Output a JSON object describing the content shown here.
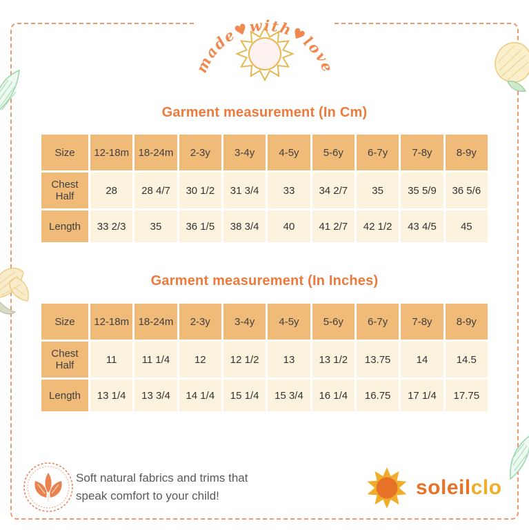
{
  "top_badge": {
    "text": "made♥with♥love"
  },
  "tables": [
    {
      "title": "Garment measurement (In Cm)",
      "header": [
        "Size",
        "12-18m",
        "18-24m",
        "2-3y",
        "3-4y",
        "4-5y",
        "5-6y",
        "6-7y",
        "7-8y",
        "8-9y"
      ],
      "rows": [
        {
          "label": "Chest Half",
          "values": [
            "28",
            "28 4/7",
            "30 1/2",
            "31 3/4",
            "33",
            "34 2/7",
            "35",
            "35 5/9",
            "36 5/6"
          ]
        },
        {
          "label": "Length",
          "values": [
            "33 2/3",
            "35",
            "36 1/5",
            "38 3/4",
            "40",
            "41 2/7",
            "42 1/2",
            "43 4/5",
            "45"
          ]
        }
      ]
    },
    {
      "title": "Garment measurement (In Inches)",
      "header": [
        "Size",
        "12-18m",
        "18-24m",
        "2-3y",
        "3-4y",
        "4-5y",
        "5-6y",
        "6-7y",
        "7-8y",
        "8-9y"
      ],
      "rows": [
        {
          "label": "Chest Half",
          "values": [
            "11",
            "11 1/4",
            "12",
            "12 1/2",
            "13",
            "13 1/2",
            "13.75",
            "14",
            "14.5"
          ]
        },
        {
          "label": "Length",
          "values": [
            "13 1/4",
            "13 3/4",
            "14 1/4",
            "15 1/4",
            "15 3/4",
            "16 1/4",
            "16.75",
            "17 1/4",
            "17.75"
          ]
        }
      ]
    }
  ],
  "chart_data": {
    "type": "table",
    "title": "Garment measurement size chart",
    "units": [
      "Cm",
      "Inches"
    ],
    "sizes": [
      "12-18m",
      "18-24m",
      "2-3y",
      "3-4y",
      "4-5y",
      "5-6y",
      "6-7y",
      "7-8y",
      "8-9y"
    ]
  },
  "footer": {
    "note_line1": "Soft natural fabrics and trims that",
    "note_line2": "speak comfort to your child!",
    "brand": {
      "part1": "soleil",
      "part2": "clo"
    }
  },
  "colors": {
    "accent_orange": "#ec7a3c",
    "table_header_bg": "#f0ba79",
    "table_cell_bg": "#fcf3df",
    "border_dash": "#e89a6f",
    "brand_orange": "#e87227",
    "brand_gold": "#f0ad2c",
    "note_gray": "#595959",
    "sun_gold": "#e5b851",
    "leaf_green": "#98d6aa",
    "sketch_yellow": "#ecc97f"
  }
}
